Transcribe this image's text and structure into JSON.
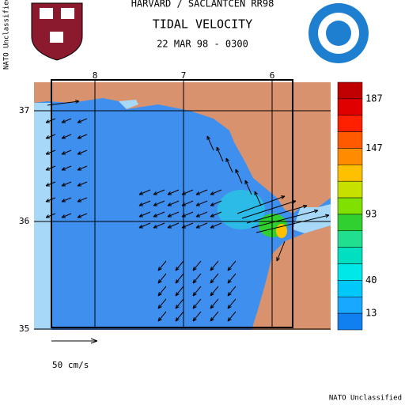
{
  "header": {
    "line1": "HARVARD / SACLANTCEN RR98",
    "title": "TIDAL VELOCITY",
    "date": "22 MAR 98 - 0300"
  },
  "side_label": "NATO Unclassified",
  "footer": "NATO Unclassified",
  "map": {
    "lon_ticks": [
      "8",
      "7",
      "6"
    ],
    "lat_ticks": [
      "37",
      "36",
      "35"
    ],
    "scale_label": "50 cm/s"
  },
  "colorbar": {
    "labels": [
      "187",
      "147",
      "93",
      "40",
      "13"
    ],
    "colors": [
      "#c00000",
      "#e00000",
      "#ff2000",
      "#ff5a00",
      "#ff8c00",
      "#ffc000",
      "#c8e000",
      "#80e000",
      "#30d030",
      "#20e090",
      "#00e0c0",
      "#00e8e8",
      "#00c8f8",
      "#18a8ff",
      "#1080f0"
    ]
  }
}
